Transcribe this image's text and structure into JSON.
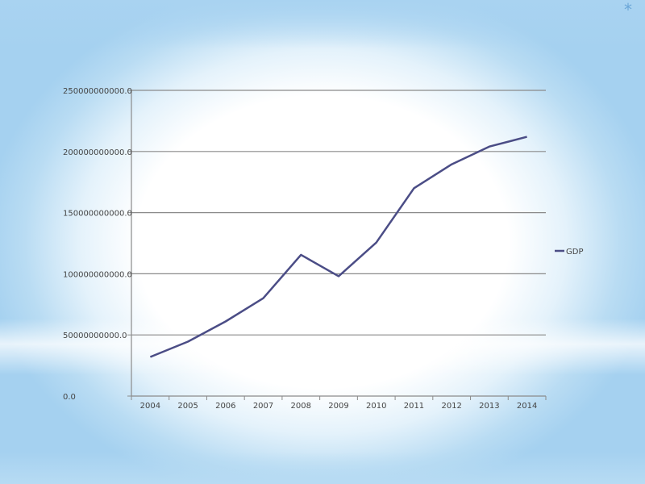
{
  "slide": {
    "background_colors": {
      "center": "#ffffff",
      "edge": "#a5d1f0"
    },
    "corner_glyph": "*"
  },
  "chart_data": {
    "type": "line",
    "title": "",
    "xlabel": "",
    "ylabel": "",
    "categories": [
      "2004",
      "2005",
      "2006",
      "2007",
      "2008",
      "2009",
      "2010",
      "2011",
      "2012",
      "2013",
      "2014"
    ],
    "series": [
      {
        "name": "GDP",
        "color": "#4b4d86",
        "values": [
          32000000000,
          44500000000,
          61000000000,
          80000000000,
          115500000000,
          98000000000,
          125500000000,
          170000000000,
          189500000000,
          204000000000,
          212000000000
        ]
      }
    ],
    "ylim": [
      0,
      250000000000
    ],
    "yticks": [
      0,
      50000000000,
      100000000000,
      150000000000,
      200000000000,
      250000000000
    ],
    "ytick_labels": [
      "0.0",
      "50000000000.0",
      "100000000000.0",
      "150000000000.0",
      "200000000000.0",
      "250000000000.0"
    ],
    "grid": true,
    "legend_position": "right"
  }
}
